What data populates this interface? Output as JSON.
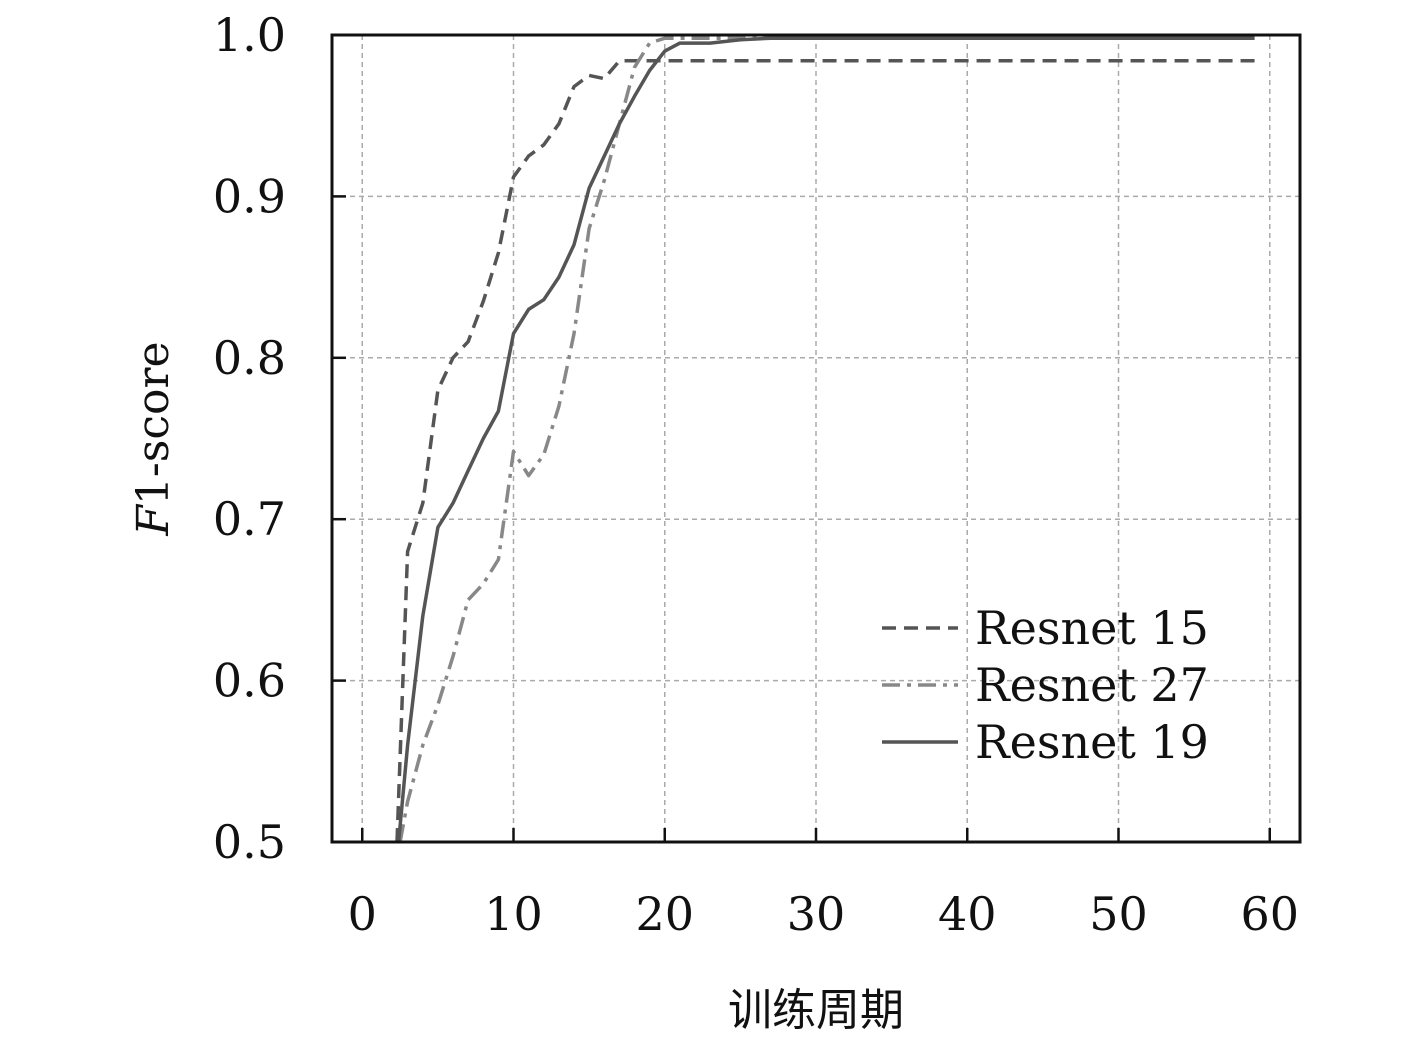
{
  "chart_data": {
    "type": "line",
    "title": "",
    "xlabel": "训练周期",
    "ylabel": "F1-score",
    "ylabel_italic_part": "F",
    "ylabel_rest": "1-score",
    "xlim": [
      -2,
      62
    ],
    "ylim": [
      0.5,
      1.0
    ],
    "xticks": [
      0,
      10,
      20,
      30,
      40,
      50,
      60
    ],
    "yticks": [
      0.5,
      0.6,
      0.7,
      0.8,
      0.9,
      1.0
    ],
    "ytick_labels": [
      "0.5",
      "0.6",
      "0.7",
      "0.8",
      "0.9",
      "1.0"
    ],
    "grid": true,
    "legend_position": "lower-right",
    "series": [
      {
        "name": "Resnet 15",
        "color": "#555555",
        "dash": "dashed",
        "points": [
          [
            2.3,
            0.5
          ],
          [
            3,
            0.68
          ],
          [
            4,
            0.71
          ],
          [
            5,
            0.78
          ],
          [
            6,
            0.8
          ],
          [
            7,
            0.81
          ],
          [
            8,
            0.835
          ],
          [
            9,
            0.865
          ],
          [
            10,
            0.912
          ],
          [
            11,
            0.925
          ],
          [
            12,
            0.932
          ],
          [
            13,
            0.945
          ],
          [
            14,
            0.968
          ],
          [
            15,
            0.975
          ],
          [
            16,
            0.973
          ],
          [
            17,
            0.984
          ],
          [
            20,
            0.984
          ],
          [
            30,
            0.984
          ],
          [
            40,
            0.984
          ],
          [
            50,
            0.984
          ],
          [
            59,
            0.984
          ]
        ]
      },
      {
        "name": "Resnet 27",
        "color": "#888888",
        "dash": "dashdot",
        "points": [
          [
            2.5,
            0.5
          ],
          [
            3,
            0.525
          ],
          [
            4,
            0.56
          ],
          [
            5,
            0.585
          ],
          [
            6,
            0.615
          ],
          [
            7,
            0.65
          ],
          [
            8,
            0.66
          ],
          [
            9,
            0.675
          ],
          [
            10,
            0.742
          ],
          [
            11,
            0.727
          ],
          [
            12,
            0.74
          ],
          [
            13,
            0.77
          ],
          [
            14,
            0.815
          ],
          [
            15,
            0.88
          ],
          [
            16,
            0.91
          ],
          [
            17,
            0.945
          ],
          [
            18,
            0.98
          ],
          [
            19,
            0.995
          ],
          [
            20,
            0.998
          ],
          [
            25,
            0.998
          ],
          [
            30,
            0.998
          ],
          [
            40,
            0.998
          ],
          [
            50,
            0.998
          ],
          [
            59,
            0.998
          ]
        ]
      },
      {
        "name": "Resnet 19",
        "color": "#555555",
        "dash": "solid",
        "points": [
          [
            2.4,
            0.5
          ],
          [
            3,
            0.56
          ],
          [
            4,
            0.64
          ],
          [
            5,
            0.695
          ],
          [
            6,
            0.71
          ],
          [
            7,
            0.73
          ],
          [
            8,
            0.75
          ],
          [
            9,
            0.767
          ],
          [
            10,
            0.815
          ],
          [
            11,
            0.83
          ],
          [
            12,
            0.836
          ],
          [
            13,
            0.85
          ],
          [
            14,
            0.87
          ],
          [
            15,
            0.905
          ],
          [
            16,
            0.925
          ],
          [
            17,
            0.945
          ],
          [
            18,
            0.962
          ],
          [
            19,
            0.978
          ],
          [
            20,
            0.99
          ],
          [
            21,
            0.995
          ],
          [
            23,
            0.995
          ],
          [
            25,
            0.997
          ],
          [
            27,
            0.998
          ],
          [
            30,
            0.998
          ],
          [
            40,
            0.998
          ],
          [
            50,
            0.998
          ],
          [
            59,
            0.998
          ]
        ]
      }
    ]
  }
}
